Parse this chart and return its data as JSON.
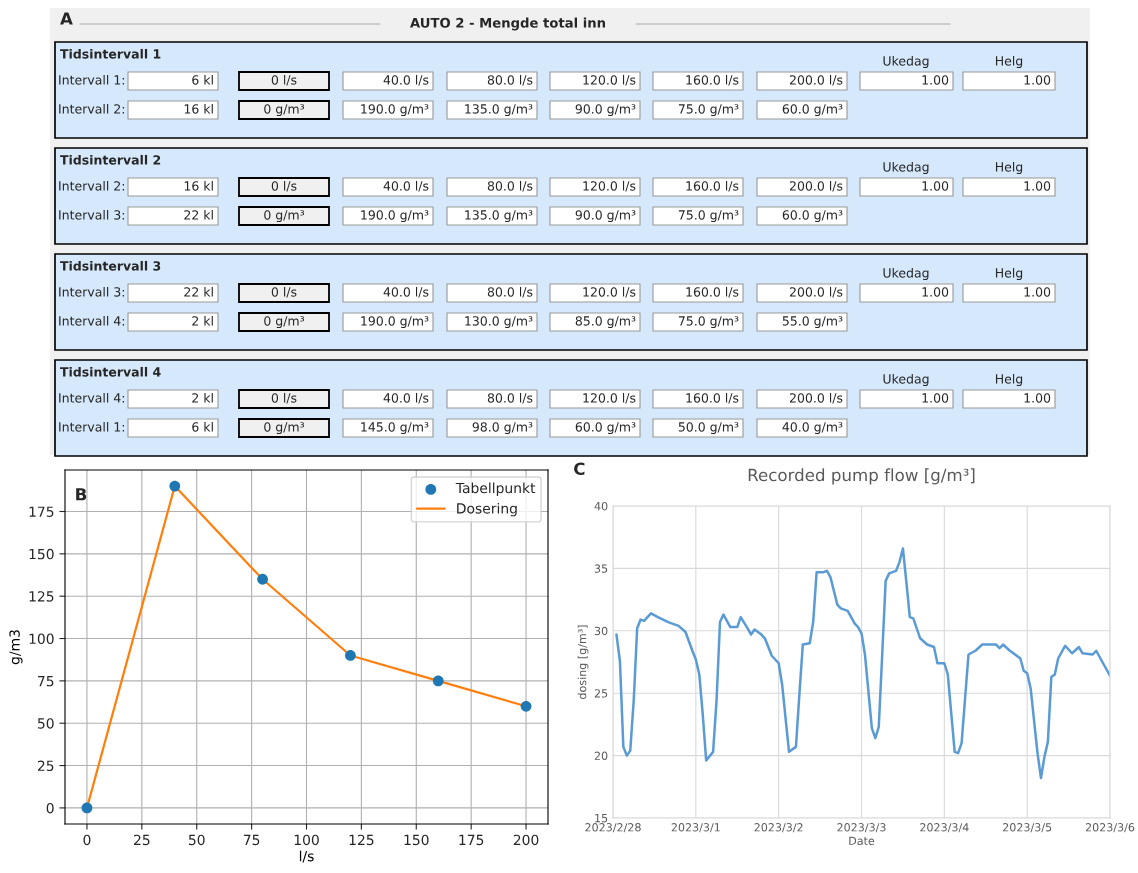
{
  "chart_data": [
    {
      "type": "other",
      "title": "AUTO 2 - Mengde total inn",
      "annotations": [
        "A",
        "Tidsintervall 1",
        "Ukedag",
        "Helg",
        "Intervall 1:",
        "6 kl",
        "0 l/s",
        "40.0 l/s",
        "80.0 l/s",
        "120.0 l/s",
        "160.0 l/s",
        "200.0 l/s",
        "1.00",
        "1.00",
        "Intervall 2:",
        "16 kl",
        "0 g/m³",
        "190.0 g/m³",
        "135.0 g/m³",
        "90.0 g/m³",
        "75.0 g/m³",
        "60.0 g/m³",
        "Tidsintervall 2",
        "Ukedag",
        "Helg",
        "Intervall 2:",
        "16 kl",
        "0 l/s",
        "40.0 l/s",
        "80.0 l/s",
        "120.0 l/s",
        "160.0 l/s",
        "200.0 l/s",
        "1.00",
        "1.00",
        "Intervall 3:",
        "22 kl",
        "0 g/m³",
        "190.0 g/m³",
        "135.0 g/m³",
        "90.0 g/m³",
        "75.0 g/m³",
        "60.0 g/m³",
        "Tidsintervall 3",
        "Ukedag",
        "Helg",
        "Intervall 3:",
        "22 kl",
        "0 l/s",
        "40.0 l/s",
        "80.0 l/s",
        "120.0 l/s",
        "160.0 l/s",
        "200.0 l/s",
        "1.00",
        "1.00",
        "Intervall 4:",
        "2 kl",
        "0 g/m³",
        "190.0 g/m³",
        "130.0 g/m³",
        "85.0 g/m³",
        "75.0 g/m³",
        "55.0 g/m³",
        "Tidsintervall 4",
        "Ukedag",
        "Helg",
        "Intervall 4:",
        "2 kl",
        "0 l/s",
        "40.0 l/s",
        "80.0 l/s",
        "120.0 l/s",
        "160.0 l/s",
        "200.0 l/s",
        "1.00",
        "1.00",
        "Intervall 1:",
        "6 kl",
        "0 g/m³",
        "145.0 g/m³",
        "98.0 g/m³",
        "60.0 g/m³",
        "50.0 g/m³",
        "40.0 g/m³"
      ]
    },
    {
      "type": "line",
      "xlabel": "l/s",
      "ylabel": "g/m3",
      "annotations": [
        "B"
      ],
      "x": [
        0,
        40,
        80,
        120,
        160,
        200
      ],
      "series": [
        {
          "name": "Tabellpunkt",
          "type": "scatter",
          "color": "#1f77b4",
          "marker": "circle",
          "values": [
            0,
            190,
            135,
            90,
            75,
            60
          ]
        },
        {
          "name": "Dosering",
          "type": "line",
          "color": "#ff7f0e",
          "values": [
            0,
            190,
            135,
            90,
            75,
            60
          ]
        }
      ],
      "xlim": [
        -10,
        210
      ],
      "ylim": [
        -9.5,
        199.5
      ],
      "xticks": [
        0,
        25,
        50,
        75,
        100,
        125,
        150,
        175,
        200
      ],
      "yticks": [
        0,
        25,
        50,
        75,
        100,
        125,
        150,
        175
      ],
      "grid": true,
      "legend": "top right"
    },
    {
      "type": "line",
      "title": "Recorded pump flow [g/m³]",
      "xlabel": "Date",
      "ylabel": "dosing [g/m³]",
      "annotations": [
        "C"
      ],
      "x": [
        "2023-02-28T01:00",
        "2023-02-28T02:00",
        "2023-02-28T03:00",
        "2023-02-28T04:00",
        "2023-02-28T05:00",
        "2023-02-28T06:00",
        "2023-02-28T07:00",
        "2023-02-28T08:00",
        "2023-02-28T09:00",
        "2023-02-28T11:00",
        "2023-02-28T13:00",
        "2023-02-28T16:00",
        "2023-02-28T18:00",
        "2023-02-28T19:00",
        "2023-02-28T21:00",
        "2023-02-28T23:00",
        "2023-03-01T00:00",
        "2023-03-01T01:00",
        "2023-03-01T02:00",
        "2023-03-01T03:00",
        "2023-03-01T05:00",
        "2023-03-01T06:00",
        "2023-03-01T07:00",
        "2023-03-01T08:00",
        "2023-03-01T10:00",
        "2023-03-01T12:00",
        "2023-03-01T13:00",
        "2023-03-01T15:00",
        "2023-03-01T16:00",
        "2023-03-01T17:00",
        "2023-03-01T19:00",
        "2023-03-01T20:00",
        "2023-03-01T22:00",
        "2023-03-02T00:00",
        "2023-03-02T01:00",
        "2023-03-02T03:00",
        "2023-03-02T05:00",
        "2023-03-02T06:00",
        "2023-03-02T07:00",
        "2023-03-02T09:00",
        "2023-03-02T10:00",
        "2023-03-02T11:00",
        "2023-03-02T13:00",
        "2023-03-02T14:00",
        "2023-03-02T15:00",
        "2023-03-02T17:00",
        "2023-03-02T18:00",
        "2023-03-02T20:00",
        "2023-03-02T22:00",
        "2023-03-02T23:00",
        "2023-03-03T00:00",
        "2023-03-03T01:00",
        "2023-03-03T03:00",
        "2023-03-03T04:00",
        "2023-03-03T05:00",
        "2023-03-03T06:00",
        "2023-03-03T07:00",
        "2023-03-03T08:00",
        "2023-03-03T10:00",
        "2023-03-03T11:00",
        "2023-03-03T12:00",
        "2023-03-03T13:00",
        "2023-03-03T14:00",
        "2023-03-03T15:00",
        "2023-03-03T17:00",
        "2023-03-03T19:00",
        "2023-03-03T21:00",
        "2023-03-03T22:00",
        "2023-03-04T00:00",
        "2023-03-04T01:00",
        "2023-03-04T03:00",
        "2023-03-04T04:00",
        "2023-03-04T05:00",
        "2023-03-04T07:00",
        "2023-03-04T09:00",
        "2023-03-04T11:00",
        "2023-03-04T15:00",
        "2023-03-04T16:00",
        "2023-03-04T17:00",
        "2023-03-04T19:00",
        "2023-03-04T22:00",
        "2023-03-04T23:00",
        "2023-03-05T00:00",
        "2023-03-05T01:00",
        "2023-03-05T03:00",
        "2023-03-05T04:00",
        "2023-03-05T05:00",
        "2023-03-05T06:00",
        "2023-03-05T07:00",
        "2023-03-05T08:00",
        "2023-03-05T09:00",
        "2023-03-05T11:00",
        "2023-03-05T13:00",
        "2023-03-05T15:00",
        "2023-03-05T16:00",
        "2023-03-05T19:00",
        "2023-03-05T20:00",
        "2023-03-05T22:00",
        "2023-03-06T00:00"
      ],
      "series": [
        {
          "color": "#5b9bd5",
          "values": [
            29.7,
            27.6,
            20.7,
            20.0,
            20.4,
            24.4,
            30.2,
            30.9,
            30.8,
            31.4,
            31.1,
            30.7,
            30.5,
            30.4,
            29.9,
            28.4,
            27.7,
            26.5,
            23.3,
            19.6,
            20.3,
            24.4,
            30.7,
            31.3,
            30.3,
            30.3,
            31.1,
            30.2,
            29.7,
            30.1,
            29.7,
            29.4,
            28.0,
            27.4,
            25.7,
            20.3,
            20.7,
            24.9,
            28.9,
            29.0,
            30.7,
            34.7,
            34.7,
            34.8,
            34.3,
            32.1,
            31.8,
            31.6,
            30.6,
            30.3,
            29.8,
            28.1,
            22.2,
            21.4,
            22.3,
            28.1,
            34.0,
            34.6,
            34.8,
            35.5,
            36.6,
            33.9,
            31.1,
            31.0,
            29.4,
            28.9,
            28.7,
            27.4,
            27.4,
            26.5,
            20.3,
            20.2,
            21.0,
            28.1,
            28.4,
            28.9,
            28.9,
            28.6,
            28.9,
            28.4,
            27.8,
            26.8,
            26.6,
            25.4,
            20.2,
            18.2,
            19.9,
            21.1,
            26.3,
            26.5,
            27.8,
            28.8,
            28.2,
            28.7,
            28.2,
            28.1,
            28.4,
            27.4,
            26.4
          ]
        }
      ],
      "xlim": [
        "2023-02-28",
        "2023-03-06"
      ],
      "xticks": [
        {
          "value": "2023-02-28",
          "label": "2023/2/28"
        },
        {
          "value": "2023-03-01",
          "label": "2023/3/1"
        },
        {
          "value": "2023-03-02",
          "label": "2023/3/2"
        },
        {
          "value": "2023-03-03",
          "label": "2023/3/3"
        },
        {
          "value": "2023-03-04",
          "label": "2023/3/4"
        },
        {
          "value": "2023-03-05",
          "label": "2023/3/5"
        },
        {
          "value": "2023-03-06",
          "label": "2023/3/6"
        }
      ],
      "ylim": [
        15,
        40
      ],
      "yticks": [
        15,
        20,
        25,
        30,
        35,
        40
      ],
      "grid": true
    }
  ]
}
